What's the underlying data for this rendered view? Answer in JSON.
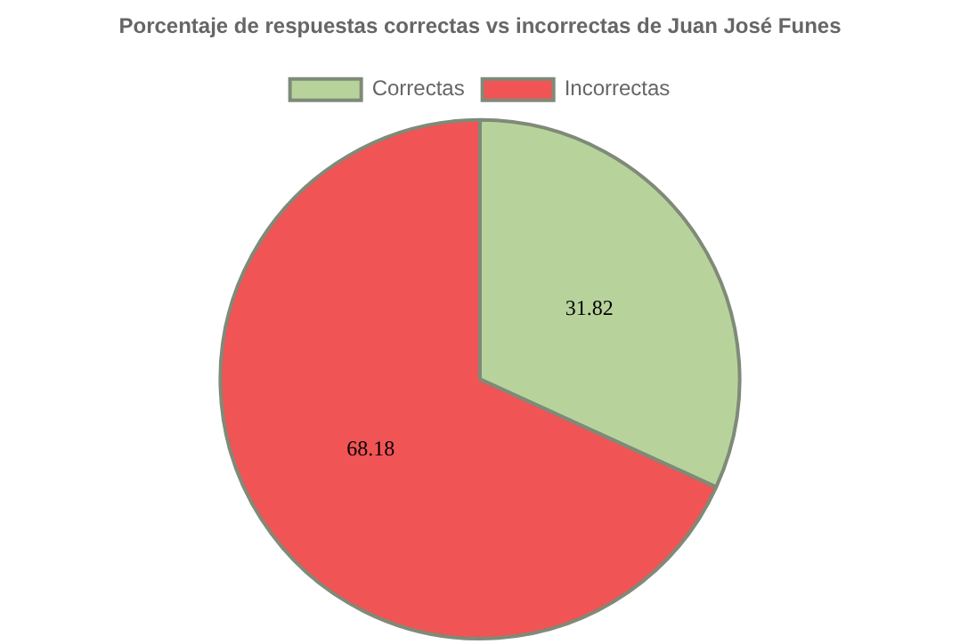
{
  "chart_data": {
    "type": "pie",
    "title": "Porcentaje de respuestas correctas vs incorrectas de Juan José Funes",
    "categories": [
      "Correctas",
      "Incorrectas"
    ],
    "values": [
      31.82,
      68.18
    ],
    "colors": [
      "#b7d39b",
      "#f05454"
    ],
    "legend": "top",
    "data_labels": true
  }
}
